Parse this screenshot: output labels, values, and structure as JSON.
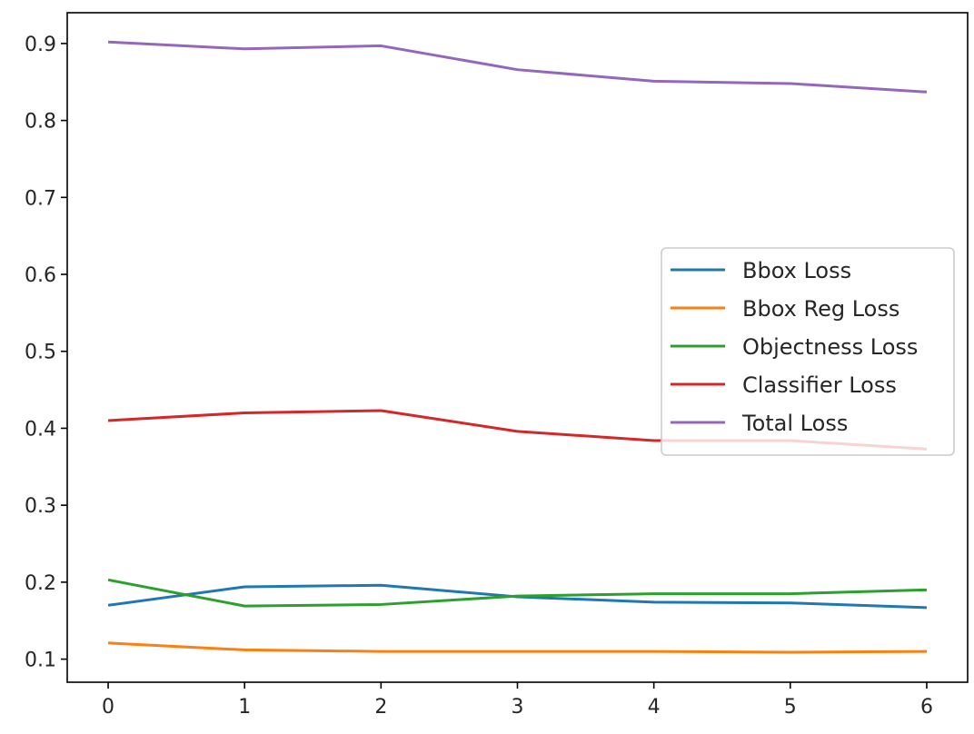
{
  "chart_data": {
    "type": "line",
    "title": "",
    "xlabel": "",
    "ylabel": "",
    "x": [
      0,
      1,
      2,
      3,
      4,
      5,
      6
    ],
    "xlim": [
      -0.3,
      6.3
    ],
    "ylim": [
      0.07,
      0.94
    ],
    "xticks": [
      "0",
      "1",
      "2",
      "3",
      "4",
      "5",
      "6"
    ],
    "yticks": [
      "0.1",
      "0.2",
      "0.3",
      "0.4",
      "0.5",
      "0.6",
      "0.7",
      "0.8",
      "0.9"
    ],
    "grid": false,
    "legend_position": "center-right",
    "series": [
      {
        "name": "Bbox Loss",
        "color": "#1f77b4",
        "values": [
          0.17,
          0.194,
          0.196,
          0.181,
          0.174,
          0.173,
          0.167
        ]
      },
      {
        "name": "Bbox Reg Loss",
        "color": "#ff7f0e",
        "values": [
          0.121,
          0.112,
          0.11,
          0.11,
          0.11,
          0.109,
          0.11
        ]
      },
      {
        "name": "Objectness Loss",
        "color": "#2ca02c",
        "values": [
          0.203,
          0.169,
          0.171,
          0.182,
          0.185,
          0.185,
          0.19
        ]
      },
      {
        "name": "Classifier Loss",
        "color": "#d62728",
        "values": [
          0.41,
          0.42,
          0.423,
          0.396,
          0.384,
          0.384,
          0.373
        ]
      },
      {
        "name": "Total Loss",
        "color": "#9467bd",
        "values": [
          0.902,
          0.893,
          0.897,
          0.866,
          0.851,
          0.848,
          0.837
        ]
      }
    ]
  }
}
